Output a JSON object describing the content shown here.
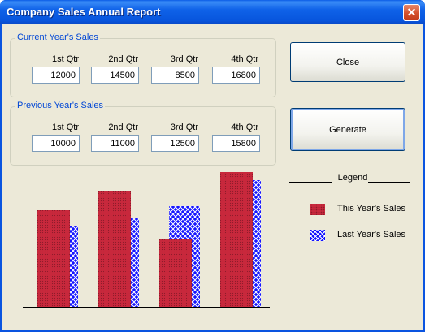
{
  "window": {
    "title": "Company Sales Annual Report",
    "close_glyph": "✕"
  },
  "current": {
    "title": "Current Year's Sales",
    "quarters": [
      {
        "label": "1st Qtr",
        "value": "12000"
      },
      {
        "label": "2nd Qtr",
        "value": "14500"
      },
      {
        "label": "3rd Qtr",
        "value": "8500"
      },
      {
        "label": "4th Qtr",
        "value": "16800"
      }
    ]
  },
  "previous": {
    "title": "Previous Year's Sales",
    "quarters": [
      {
        "label": "1st Qtr",
        "value": "10000"
      },
      {
        "label": "2nd Qtr",
        "value": "11000"
      },
      {
        "label": "3rd Qtr",
        "value": "12500"
      },
      {
        "label": "4th Qtr",
        "value": "15800"
      }
    ]
  },
  "buttons": {
    "close": "Close",
    "generate": "Generate"
  },
  "legend": {
    "title": "Legend",
    "items": [
      {
        "label": "This Year's Sales",
        "style": "solid",
        "color": "#c8283c"
      },
      {
        "label": "Last Year's Sales",
        "style": "hatch",
        "color": "#1414ff"
      }
    ]
  },
  "chart_data": {
    "type": "bar",
    "categories": [
      "1st Qtr",
      "2nd Qtr",
      "3rd Qtr",
      "4th Qtr"
    ],
    "series": [
      {
        "name": "This Year's Sales",
        "values": [
          12000,
          14500,
          8500,
          16800
        ],
        "color": "#c8283c"
      },
      {
        "name": "Last Year's Sales",
        "values": [
          10000,
          11000,
          12500,
          15800
        ],
        "color": "#1414ff"
      }
    ],
    "ylim": [
      0,
      17000
    ],
    "grid": false,
    "legend": "right"
  }
}
